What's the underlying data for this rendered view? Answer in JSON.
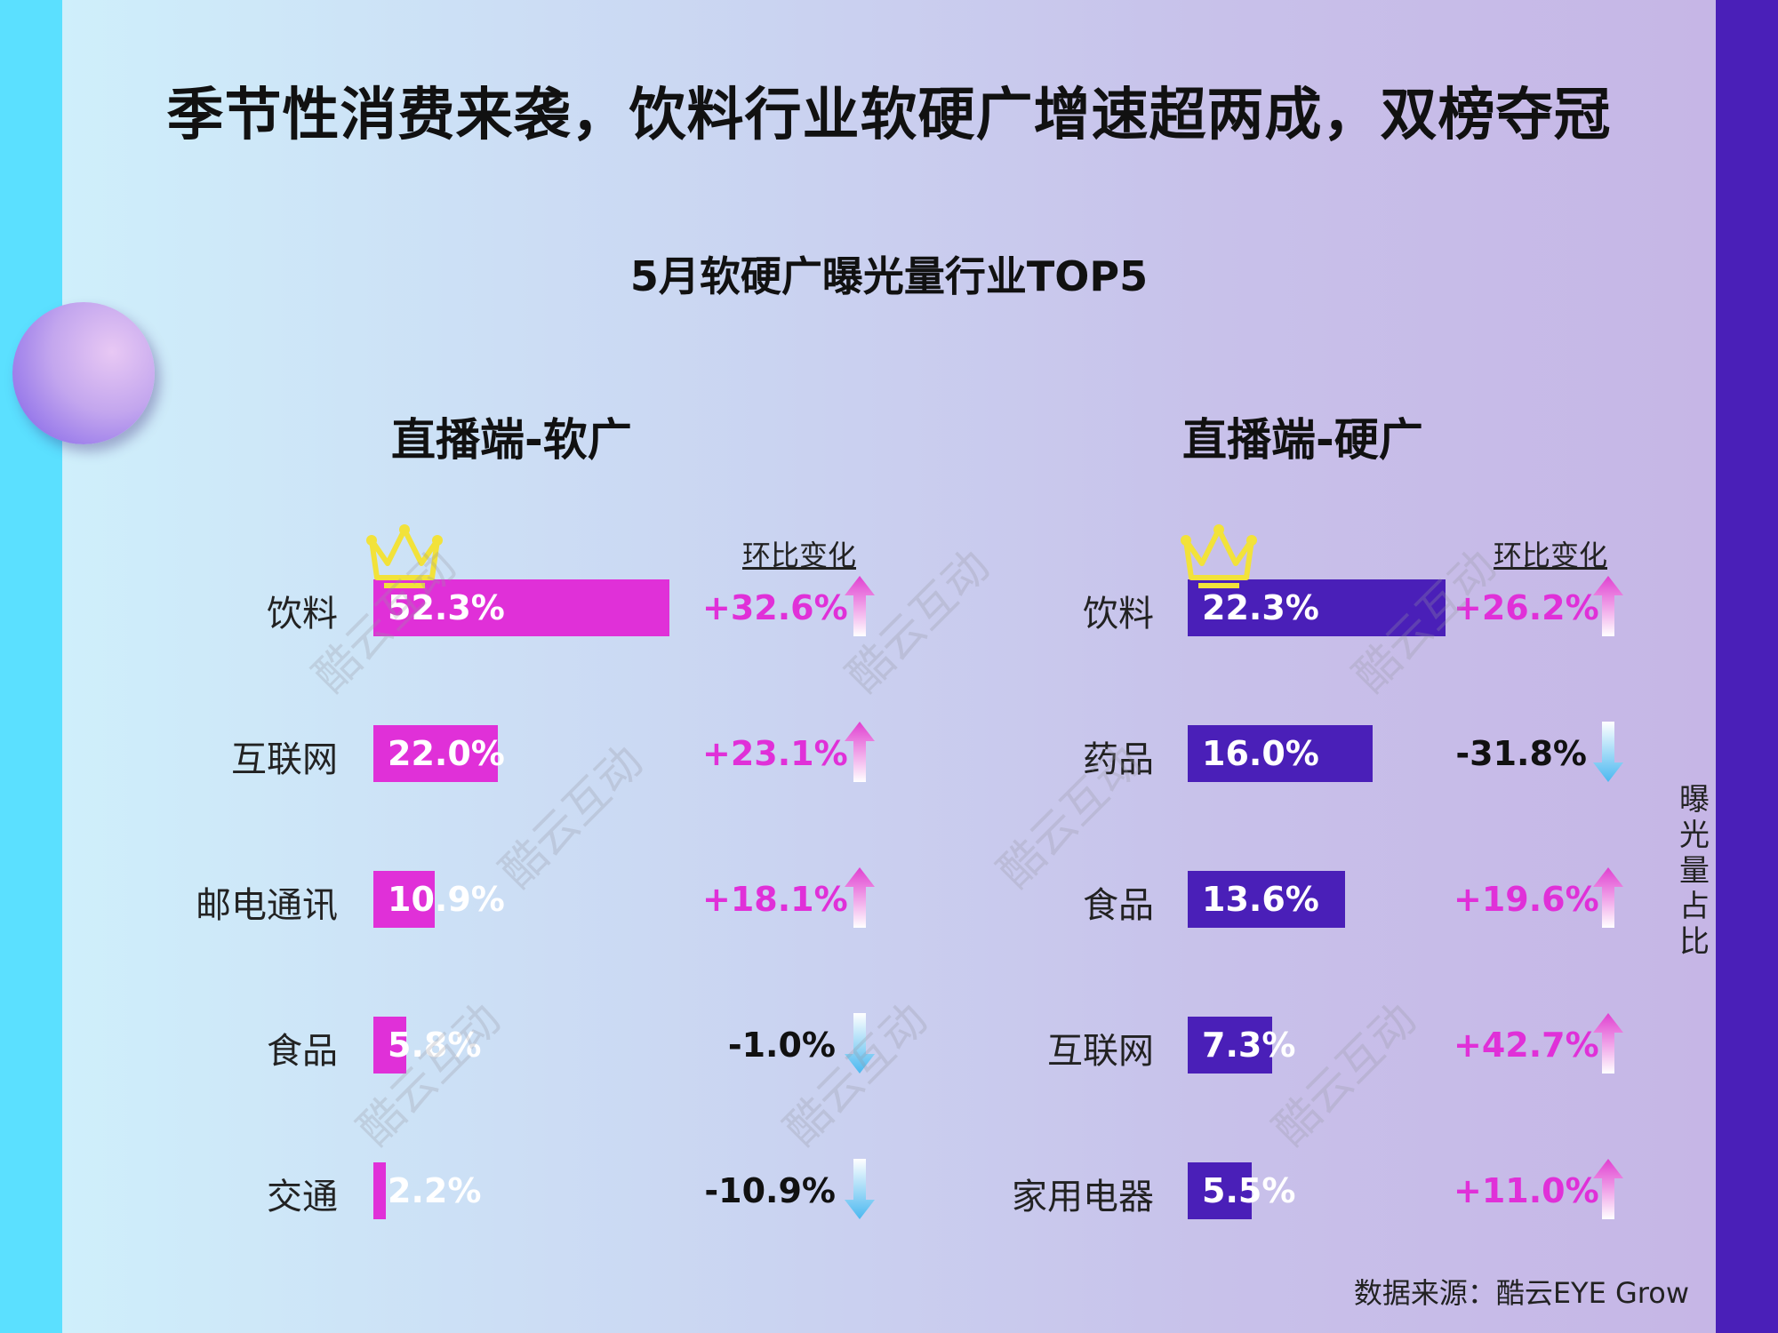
{
  "title": "季节性消费来袭，饮料行业软硬广增速超两成，双榜夺冠",
  "subtitle": "5月软硬广曝光量行业TOP5",
  "change_header": "环比变化",
  "side_label": "曝光量占比",
  "source": "数据来源：酷云EYE Grow",
  "watermark": "酷云互动",
  "colors": {
    "soft_bar": "#e030d8",
    "hard_bar": "#4a1fb8",
    "positive": "#e030d8",
    "negative": "#111111",
    "arrow_up": "#e040d0",
    "arrow_down": "#4ab8f0"
  },
  "chart_data": [
    {
      "type": "bar",
      "title": "直播端-软广",
      "categories": [
        "饮料",
        "互联网",
        "邮电通讯",
        "食品",
        "交通"
      ],
      "values": [
        52.3,
        22.0,
        10.9,
        5.8,
        2.2
      ],
      "value_labels": [
        "52.3%",
        "22.0%",
        "10.9%",
        "5.8%",
        "2.2%"
      ],
      "changes": [
        32.6,
        23.1,
        18.1,
        -1.0,
        -10.9
      ],
      "change_labels": [
        "+32.6%",
        "+23.1%",
        "+18.1%",
        "-1.0%",
        "-10.9%"
      ],
      "orientation": "horizontal",
      "grid": false
    },
    {
      "type": "bar",
      "title": "直播端-硬广",
      "categories": [
        "饮料",
        "药品",
        "食品",
        "互联网",
        "家用电器"
      ],
      "values": [
        22.3,
        16.0,
        13.6,
        7.3,
        5.5
      ],
      "value_labels": [
        "22.3%",
        "16.0%",
        "13.6%",
        "7.3%",
        "5.5%"
      ],
      "changes": [
        26.2,
        -31.8,
        19.6,
        42.7,
        11.0
      ],
      "change_labels": [
        "+26.2%",
        "-31.8%",
        "+19.6%",
        "+42.7%",
        "+11.0%"
      ],
      "orientation": "horizontal",
      "grid": false
    }
  ]
}
